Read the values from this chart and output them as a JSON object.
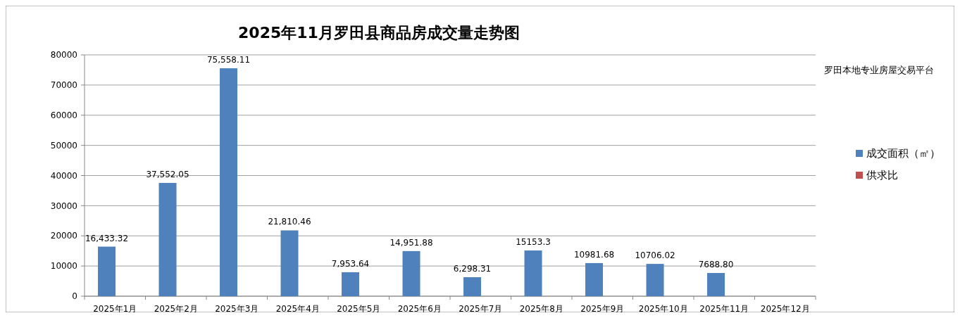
{
  "chart_data": {
    "type": "bar",
    "title": "2025年11月罗田县商品房成交量走势图",
    "categories": [
      "2025年1月",
      "2025年2月",
      "2025年3月",
      "2025年4月",
      "2025年5月",
      "2025年6月",
      "2025年7月",
      "2025年8月",
      "2025年9月",
      "2025年10月",
      "2025年11月",
      "2025年12月"
    ],
    "series": [
      {
        "name": "成交面积（㎡）",
        "color": "#4f81bd",
        "values": [
          16433.32,
          37552.05,
          75558.11,
          21810.46,
          7953.64,
          14951.88,
          6298.31,
          15153.3,
          10981.68,
          10706.02,
          7688.8,
          null
        ],
        "value_labels": [
          "16,433.32",
          "37,552.05",
          "75,558.11",
          "21,810.46",
          "7,953.64",
          "14,951.88",
          "6,298.31",
          "15153.3",
          "10981.68",
          "10706.02",
          "7688.80",
          null
        ]
      },
      {
        "name": "供求比",
        "color": "#c0504d",
        "values": [
          null,
          null,
          null,
          null,
          null,
          null,
          null,
          null,
          null,
          null,
          null,
          null
        ]
      }
    ],
    "ylim": [
      0,
      80000
    ],
    "yticks": [
      0,
      10000,
      20000,
      30000,
      40000,
      50000,
      60000,
      70000,
      80000
    ],
    "grid": "y",
    "legend": "right",
    "annotations": [
      "罗田本地专业房屋交易平台"
    ]
  }
}
